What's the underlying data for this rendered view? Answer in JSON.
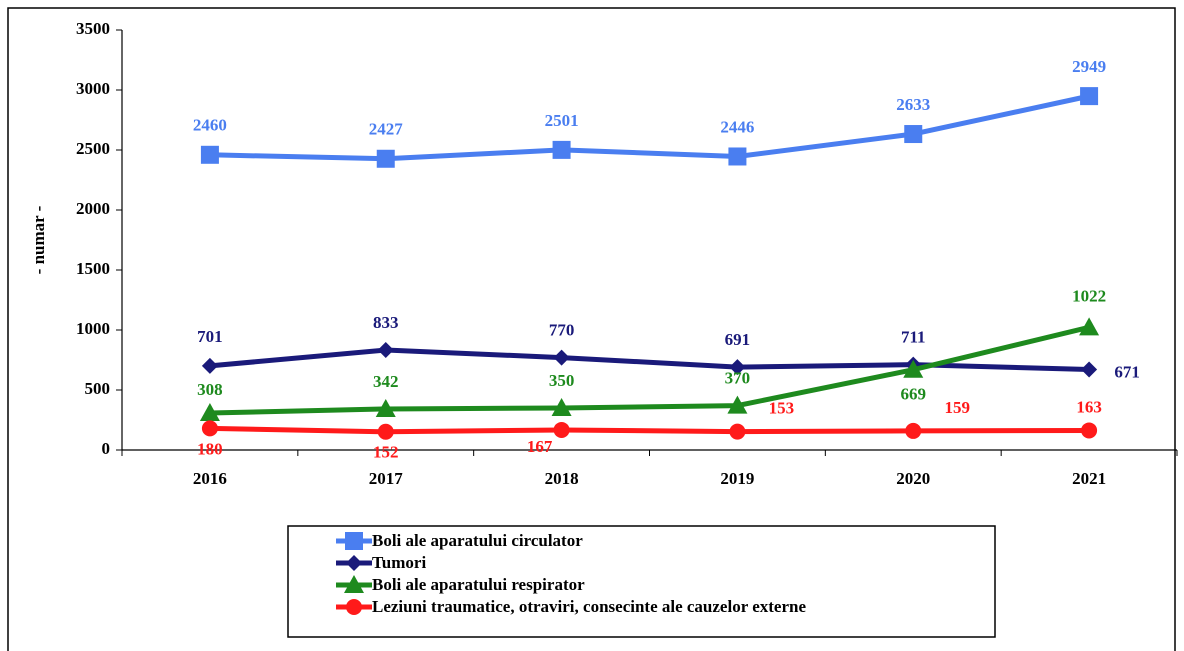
{
  "chart_data": {
    "type": "line",
    "y_label": "- numar -",
    "categories": [
      "2016",
      "2017",
      "2018",
      "2019",
      "2020",
      "2021"
    ],
    "series": [
      {
        "name": "Boli ale aparatului circulator",
        "color": "#4a7ef0",
        "marker": "square",
        "values": [
          2460,
          2427,
          2501,
          2446,
          2633,
          2949
        ]
      },
      {
        "name": "Tumori",
        "color": "#1a1a7a",
        "marker": "diamond",
        "values": [
          701,
          833,
          770,
          691,
          711,
          671
        ]
      },
      {
        "name": "Boli ale aparatului respirator",
        "color": "#1e8a1e",
        "marker": "triangle",
        "values": [
          308,
          342,
          350,
          370,
          669,
          1022
        ]
      },
      {
        "name": "Leziuni traumatice, otraviri, consecinte ale cauzelor externe",
        "color": "#ff1a1a",
        "marker": "circle",
        "values": [
          180,
          152,
          167,
          153,
          159,
          163
        ]
      }
    ],
    "ylim": [
      0,
      3500
    ],
    "yticks": [
      0,
      500,
      1000,
      1500,
      2000,
      2500,
      3000,
      3500
    ],
    "grid": false,
    "legend": "bottom"
  }
}
